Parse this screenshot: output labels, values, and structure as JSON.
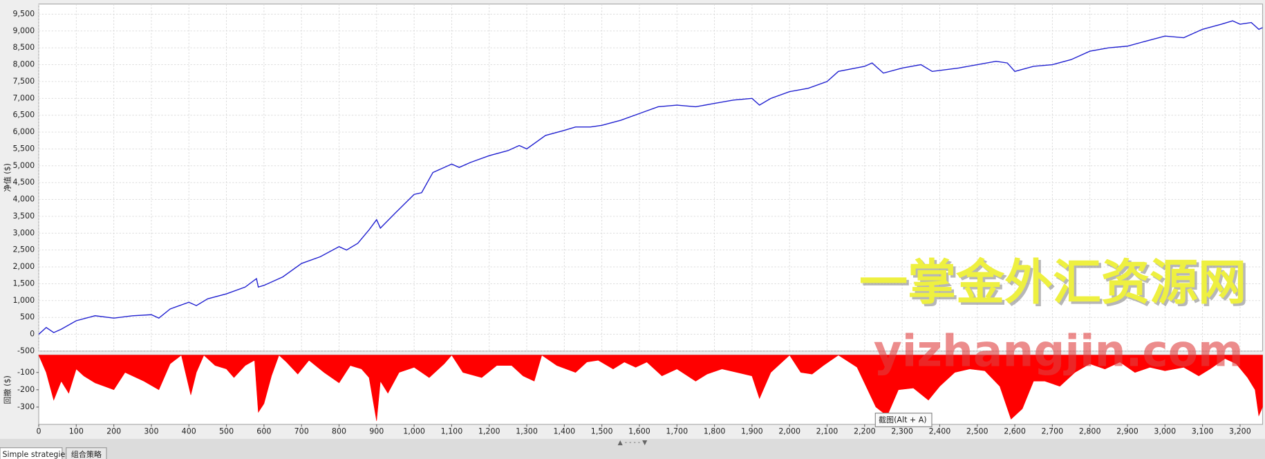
{
  "chart_data": [
    {
      "type": "line",
      "ylabel": "净值 ($)",
      "color": "#2020d0",
      "grid": true,
      "xlim": [
        0,
        3260
      ],
      "ylim": [
        -500,
        9800
      ],
      "xticks": [
        0,
        100,
        200,
        300,
        400,
        500,
        600,
        700,
        800,
        900,
        1000,
        1100,
        1200,
        1300,
        1400,
        1500,
        1600,
        1700,
        1800,
        1900,
        2000,
        2100,
        2200,
        2300,
        2400,
        2500,
        2600,
        2700,
        2800,
        2900,
        3000,
        3100,
        3200
      ],
      "yticks": [
        -500,
        0,
        500,
        {
          "value": 1000,
          "label": "1,000"
        },
        {
          "value": 1500,
          "label": "1,500"
        },
        {
          "value": 2000,
          "label": "2,000"
        },
        {
          "value": 2500,
          "label": "2,500"
        },
        {
          "value": 3000,
          "label": "3,000"
        },
        {
          "value": 3500,
          "label": "3,500"
        },
        {
          "value": 4000,
          "label": "4,000"
        },
        {
          "value": 4500,
          "label": "4,500"
        },
        {
          "value": 5000,
          "label": "5,000"
        },
        {
          "value": 5500,
          "label": "5,500"
        },
        {
          "value": 6000,
          "label": "6,000"
        },
        {
          "value": 6500,
          "label": "6,500"
        },
        {
          "value": 7000,
          "label": "7,000"
        },
        {
          "value": 7500,
          "label": "7,500"
        },
        {
          "value": 8000,
          "label": "8,000"
        },
        {
          "value": 8500,
          "label": "8,500"
        },
        {
          "value": 9000,
          "label": "9,000"
        },
        {
          "value": 9500,
          "label": "9,500"
        }
      ],
      "x": [
        0,
        20,
        40,
        60,
        100,
        150,
        200,
        250,
        300,
        320,
        350,
        400,
        420,
        450,
        500,
        550,
        580,
        585,
        600,
        650,
        700,
        750,
        800,
        820,
        850,
        880,
        900,
        910,
        950,
        1000,
        1020,
        1050,
        1100,
        1120,
        1150,
        1200,
        1250,
        1280,
        1300,
        1350,
        1400,
        1430,
        1470,
        1500,
        1550,
        1600,
        1650,
        1700,
        1750,
        1800,
        1850,
        1900,
        1920,
        1950,
        2000,
        2050,
        2100,
        2130,
        2200,
        2220,
        2250,
        2300,
        2350,
        2380,
        2450,
        2500,
        2550,
        2580,
        2600,
        2650,
        2700,
        2750,
        2800,
        2850,
        2900,
        2950,
        3000,
        3050,
        3100,
        3150,
        3180,
        3200,
        3230,
        3250,
        3260
      ],
      "values": [
        0,
        200,
        50,
        150,
        400,
        550,
        480,
        550,
        580,
        480,
        750,
        950,
        850,
        1050,
        1200,
        1400,
        1650,
        1400,
        1450,
        1700,
        2100,
        2300,
        2600,
        2500,
        2700,
        3100,
        3400,
        3150,
        3600,
        4150,
        4200,
        4800,
        5050,
        4950,
        5100,
        5300,
        5450,
        5600,
        5500,
        5900,
        6050,
        6150,
        6150,
        6200,
        6350,
        6550,
        6750,
        6800,
        6750,
        6850,
        6950,
        7000,
        6800,
        7000,
        7200,
        7300,
        7500,
        7800,
        7950,
        8050,
        7750,
        7900,
        8000,
        7800,
        7900,
        8000,
        8100,
        8050,
        7800,
        7950,
        8000,
        8150,
        8400,
        8500,
        8550,
        8700,
        8850,
        8800,
        9050,
        9200,
        9300,
        9200,
        9250,
        9050,
        9100
      ]
    },
    {
      "type": "area",
      "ylabel": "回撤 ($)",
      "color": "#ff0000",
      "xlim": [
        0,
        3260
      ],
      "ylim": [
        -400,
        0
      ],
      "xticks": [
        0,
        100,
        200,
        300,
        400,
        500,
        600,
        700,
        800,
        900,
        {
          "value": 1000,
          "label": "1,000"
        },
        {
          "value": 1100,
          "label": "1,100"
        },
        {
          "value": 1200,
          "label": "1,200"
        },
        {
          "value": 1300,
          "label": "1,300"
        },
        {
          "value": 1400,
          "label": "1,400"
        },
        {
          "value": 1500,
          "label": "1,500"
        },
        {
          "value": 1600,
          "label": "1,600"
        },
        {
          "value": 1700,
          "label": "1,700"
        },
        {
          "value": 1800,
          "label": "1,800"
        },
        {
          "value": 1900,
          "label": "1,900"
        },
        {
          "value": 2000,
          "label": "2,000"
        },
        {
          "value": 2100,
          "label": "2,100"
        },
        {
          "value": 2200,
          "label": "2,200"
        },
        {
          "value": 2300,
          "label": "2,300"
        },
        {
          "value": 2400,
          "label": "2,400"
        },
        {
          "value": 2500,
          "label": "2,500"
        },
        {
          "value": 2600,
          "label": "2,600"
        },
        {
          "value": 2700,
          "label": "2,700"
        },
        {
          "value": 2800,
          "label": "2,800"
        },
        {
          "value": 2900,
          "label": "2,900"
        },
        {
          "value": 3000,
          "label": "3,000"
        },
        {
          "value": 3100,
          "label": "3,100"
        },
        {
          "value": 3200,
          "label": "3,200"
        }
      ],
      "yticks": [
        -100,
        -200,
        -300
      ],
      "x": [
        0,
        20,
        40,
        60,
        80,
        100,
        120,
        150,
        200,
        230,
        280,
        320,
        350,
        380,
        405,
        420,
        440,
        470,
        500,
        520,
        550,
        575,
        585,
        600,
        620,
        640,
        660,
        690,
        720,
        760,
        800,
        830,
        860,
        880,
        900,
        910,
        930,
        960,
        1000,
        1040,
        1080,
        1100,
        1130,
        1180,
        1220,
        1260,
        1290,
        1320,
        1340,
        1380,
        1430,
        1460,
        1490,
        1530,
        1560,
        1590,
        1620,
        1660,
        1700,
        1750,
        1780,
        1820,
        1860,
        1900,
        1920,
        1950,
        1980,
        2000,
        2030,
        2060,
        2090,
        2130,
        2180,
        2230,
        2260,
        2290,
        2330,
        2370,
        2400,
        2440,
        2480,
        2520,
        2560,
        2590,
        2620,
        2650,
        2680,
        2720,
        2760,
        2800,
        2840,
        2880,
        2920,
        2960,
        3000,
        3050,
        3090,
        3120,
        3160,
        3190,
        3220,
        3240,
        3250,
        3260
      ],
      "values": [
        0,
        -100,
        -260,
        -150,
        -220,
        -80,
        -120,
        -160,
        -200,
        -100,
        -150,
        -200,
        -50,
        0,
        -230,
        -100,
        0,
        -60,
        -80,
        -130,
        -60,
        -30,
        -330,
        -280,
        -120,
        0,
        -40,
        -110,
        -30,
        -100,
        -160,
        -60,
        -80,
        -130,
        -380,
        -150,
        -220,
        -100,
        -70,
        -130,
        -50,
        0,
        -100,
        -130,
        -60,
        -60,
        -120,
        -150,
        0,
        -60,
        -100,
        -40,
        -30,
        -80,
        -40,
        -70,
        -40,
        -120,
        -80,
        -150,
        -110,
        -80,
        -100,
        -120,
        -250,
        -100,
        -40,
        0,
        -100,
        -110,
        -60,
        0,
        -70,
        -300,
        -350,
        -200,
        -190,
        -260,
        -180,
        -100,
        -80,
        -90,
        -180,
        -370,
        -310,
        -150,
        -150,
        -180,
        -100,
        -50,
        -80,
        -40,
        -100,
        -70,
        -90,
        -70,
        -120,
        -80,
        -20,
        -50,
        -130,
        -200,
        -350,
        -300
      ]
    }
  ],
  "watermarks": [
    "一掌金外汇资源网",
    "yizhangjin.com"
  ],
  "tooltip": "截图(Alt + A)",
  "tabs": [
    "Simple strategies",
    "组合策略"
  ]
}
